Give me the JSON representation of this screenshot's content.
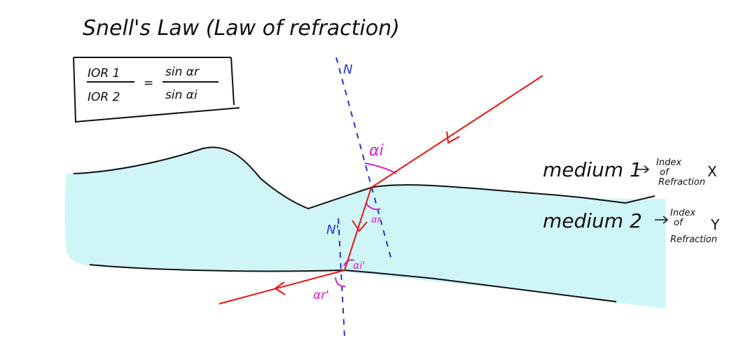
{
  "title": "Snell's Law (Law of refraction)",
  "formula": {
    "left_num": "IOR 1",
    "left_den": "IOR 2",
    "equals": "=",
    "right_num": "sin αr",
    "right_den": "sin αi"
  },
  "normal_labels": {
    "top": "N",
    "bottom": "N'"
  },
  "angle_labels": {
    "incidence_top": "αi",
    "refraction_top": "αr",
    "incidence_bottom": "αi'",
    "refraction_bottom": "αr'"
  },
  "medium1": {
    "label": "medium 1",
    "arrow": "→",
    "index_line1": "Index",
    "index_line2": "of",
    "index_line3": "Refraction",
    "value": "X"
  },
  "medium2": {
    "label": "medium 2",
    "arrow": "→",
    "index_line1": "Index",
    "index_line2": "of",
    "index_line3": "Refraction",
    "value": "Y"
  },
  "colors": {
    "medium_fill": "#cff5f7",
    "ray": "#ee1111",
    "normal": "#2233dd",
    "angle": "#e020d0",
    "ink": "#111111"
  }
}
